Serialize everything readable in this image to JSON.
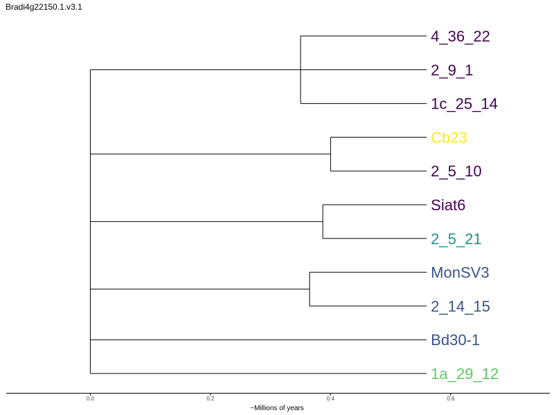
{
  "chart_data": {
    "type": "dendrogram",
    "title": "Bradi4g22150.1.v3.1",
    "xlabel": "~Millions of years",
    "xlim": [
      -0.14,
      0.765
    ],
    "xticks": [
      0.0,
      0.2,
      0.4,
      0.6
    ],
    "xtick_labels": [
      "0.0",
      "0.2",
      "0.4",
      "0.6"
    ],
    "leaf_x": 0.56,
    "leaves": [
      {
        "label": "4_36_22",
        "color": "#440154"
      },
      {
        "label": "2_9_1",
        "color": "#440154"
      },
      {
        "label": "1c_25_14",
        "color": "#440154"
      },
      {
        "label": "Cb23",
        "color": "#fde725"
      },
      {
        "label": "2_5_10",
        "color": "#440154"
      },
      {
        "label": "Siat6",
        "color": "#440154"
      },
      {
        "label": "2_5_21",
        "color": "#21918c"
      },
      {
        "label": "MonSV3",
        "color": "#3b528b"
      },
      {
        "label": "2_14_15",
        "color": "#3b528b"
      },
      {
        "label": "Bd30-1",
        "color": "#3b528b"
      },
      {
        "label": "1a_29_12",
        "color": "#5ec962"
      }
    ],
    "tree": {
      "height": 0.0,
      "children": [
        {
          "height": 0.35,
          "children": [
            0,
            1,
            2
          ]
        },
        {
          "height": 0.4,
          "children": [
            3,
            4
          ]
        },
        {
          "height": 0.387,
          "children": [
            5,
            6
          ]
        },
        {
          "height": 0.365,
          "children": [
            7,
            8
          ]
        },
        9,
        10
      ]
    }
  }
}
